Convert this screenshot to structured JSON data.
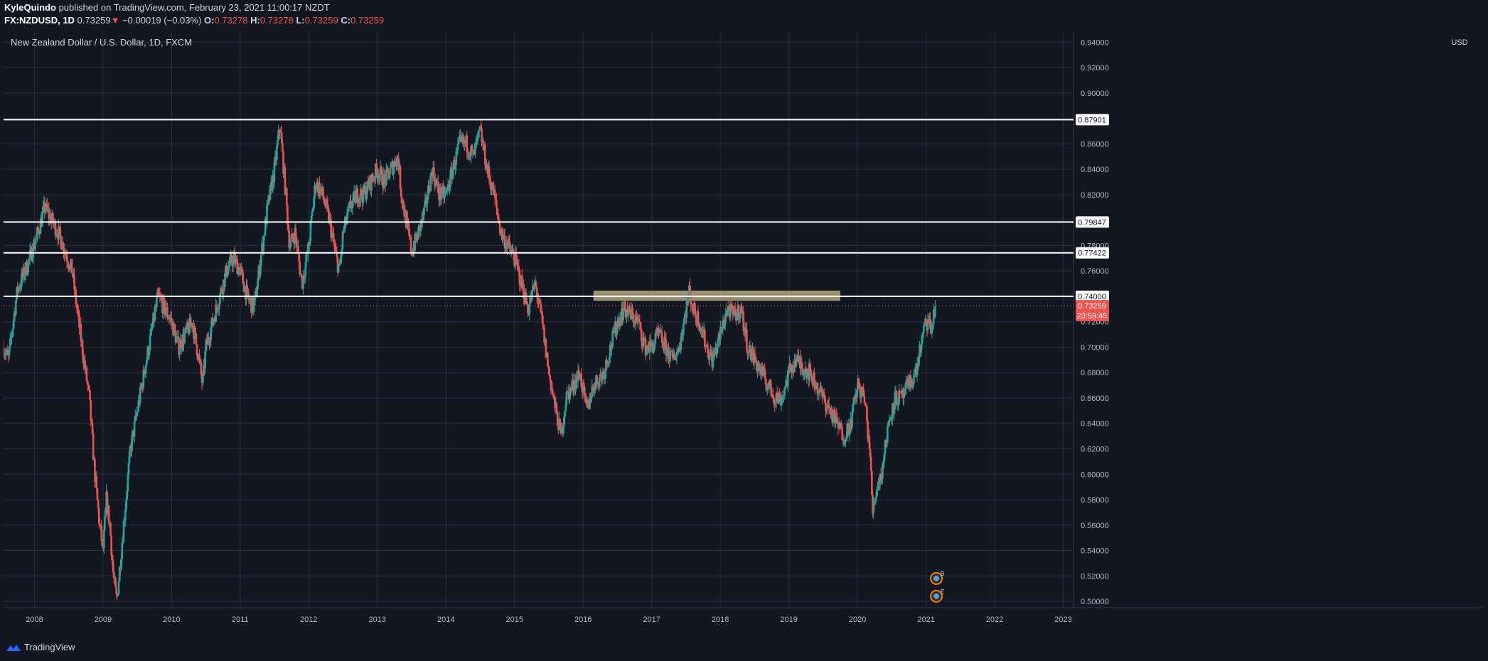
{
  "header": {
    "author": "KyleQuindo",
    "published_text": "published on TradingView.com, February 23, 2021 11:00:17 NZDT",
    "symbol": "FX:NZDUSD, 1D",
    "last": "0.73259",
    "change": "−0.00019 (−0.03%)",
    "o_label": "O:",
    "o": "0.73278",
    "h_label": "H:",
    "h": "0.73278",
    "l_label": "L:",
    "l": "0.73259",
    "c_label": "C:",
    "c": "0.73259"
  },
  "footer": {
    "brand": "TradingView"
  },
  "colors": {
    "background": "#131722",
    "grid": "#2a2e39",
    "up": "#26a69a",
    "down": "#ef5350",
    "level_line": "#ffffff",
    "zone": "#c8b88a",
    "price_badge": "#ef5350"
  },
  "chart_data": {
    "type": "candlestick",
    "title": "New Zealand Dollar / U.S. Dollar, 1D, FXCM",
    "currency": "USD",
    "x_range": [
      2007.55,
      2023.15
    ],
    "ylim": [
      0.495,
      0.948
    ],
    "x_ticks": [
      "2008",
      "2009",
      "2010",
      "2011",
      "2012",
      "2013",
      "2014",
      "2015",
      "2016",
      "2017",
      "2018",
      "2019",
      "2020",
      "2021",
      "2022",
      "2023"
    ],
    "y_ticks": [
      "0.94000",
      "0.92000",
      "0.90000",
      "0.88000",
      "0.86000",
      "0.84000",
      "0.82000",
      "0.80000",
      "0.78000",
      "0.76000",
      "0.74000",
      "0.72000",
      "0.70000",
      "0.68000",
      "0.66000",
      "0.64000",
      "0.62000",
      "0.60000",
      "0.58000",
      "0.56000",
      "0.54000",
      "0.52000",
      "0.50000"
    ],
    "price_path": [
      [
        2007.55,
        0.7
      ],
      [
        2007.62,
        0.69
      ],
      [
        2007.75,
        0.745
      ],
      [
        2007.9,
        0.765
      ],
      [
        2008.05,
        0.79
      ],
      [
        2008.15,
        0.81
      ],
      [
        2008.25,
        0.8
      ],
      [
        2008.35,
        0.79
      ],
      [
        2008.45,
        0.775
      ],
      [
        2008.55,
        0.76
      ],
      [
        2008.62,
        0.73
      ],
      [
        2008.72,
        0.69
      ],
      [
        2008.8,
        0.66
      ],
      [
        2008.88,
        0.6
      ],
      [
        2008.95,
        0.56
      ],
      [
        2009.0,
        0.54
      ],
      [
        2009.05,
        0.58
      ],
      [
        2009.1,
        0.56
      ],
      [
        2009.15,
        0.52
      ],
      [
        2009.2,
        0.5
      ],
      [
        2009.3,
        0.56
      ],
      [
        2009.4,
        0.62
      ],
      [
        2009.5,
        0.65
      ],
      [
        2009.6,
        0.68
      ],
      [
        2009.7,
        0.71
      ],
      [
        2009.8,
        0.74
      ],
      [
        2009.9,
        0.73
      ],
      [
        2010.0,
        0.72
      ],
      [
        2010.1,
        0.7
      ],
      [
        2010.2,
        0.71
      ],
      [
        2010.3,
        0.72
      ],
      [
        2010.4,
        0.69
      ],
      [
        2010.45,
        0.67
      ],
      [
        2010.5,
        0.7
      ],
      [
        2010.6,
        0.72
      ],
      [
        2010.7,
        0.74
      ],
      [
        2010.8,
        0.76
      ],
      [
        2010.9,
        0.77
      ],
      [
        2011.0,
        0.76
      ],
      [
        2011.1,
        0.74
      ],
      [
        2011.2,
        0.73
      ],
      [
        2011.3,
        0.77
      ],
      [
        2011.4,
        0.81
      ],
      [
        2011.5,
        0.84
      ],
      [
        2011.58,
        0.875
      ],
      [
        2011.65,
        0.83
      ],
      [
        2011.72,
        0.78
      ],
      [
        2011.8,
        0.79
      ],
      [
        2011.9,
        0.75
      ],
      [
        2012.0,
        0.78
      ],
      [
        2012.1,
        0.83
      ],
      [
        2012.2,
        0.82
      ],
      [
        2012.3,
        0.8
      ],
      [
        2012.4,
        0.77
      ],
      [
        2012.45,
        0.76
      ],
      [
        2012.5,
        0.79
      ],
      [
        2012.6,
        0.81
      ],
      [
        2012.7,
        0.82
      ],
      [
        2012.8,
        0.82
      ],
      [
        2012.9,
        0.83
      ],
      [
        2013.0,
        0.84
      ],
      [
        2013.1,
        0.83
      ],
      [
        2013.2,
        0.84
      ],
      [
        2013.3,
        0.85
      ],
      [
        2013.35,
        0.82
      ],
      [
        2013.45,
        0.79
      ],
      [
        2013.5,
        0.775
      ],
      [
        2013.6,
        0.79
      ],
      [
        2013.7,
        0.81
      ],
      [
        2013.8,
        0.84
      ],
      [
        2013.9,
        0.82
      ],
      [
        2014.0,
        0.82
      ],
      [
        2014.1,
        0.84
      ],
      [
        2014.2,
        0.86
      ],
      [
        2014.3,
        0.86
      ],
      [
        2014.4,
        0.85
      ],
      [
        2014.5,
        0.87
      ],
      [
        2014.6,
        0.84
      ],
      [
        2014.7,
        0.82
      ],
      [
        2014.8,
        0.79
      ],
      [
        2014.9,
        0.78
      ],
      [
        2015.0,
        0.77
      ],
      [
        2015.1,
        0.75
      ],
      [
        2015.2,
        0.73
      ],
      [
        2015.3,
        0.75
      ],
      [
        2015.4,
        0.72
      ],
      [
        2015.5,
        0.68
      ],
      [
        2015.6,
        0.65
      ],
      [
        2015.68,
        0.63
      ],
      [
        2015.75,
        0.66
      ],
      [
        2015.85,
        0.67
      ],
      [
        2015.95,
        0.68
      ],
      [
        2016.05,
        0.65
      ],
      [
        2016.15,
        0.67
      ],
      [
        2016.3,
        0.68
      ],
      [
        2016.4,
        0.7
      ],
      [
        2016.5,
        0.72
      ],
      [
        2016.6,
        0.73
      ],
      [
        2016.7,
        0.725
      ],
      [
        2016.8,
        0.72
      ],
      [
        2016.9,
        0.7
      ],
      [
        2017.0,
        0.7
      ],
      [
        2017.1,
        0.71
      ],
      [
        2017.2,
        0.7
      ],
      [
        2017.3,
        0.69
      ],
      [
        2017.4,
        0.7
      ],
      [
        2017.5,
        0.73
      ],
      [
        2017.55,
        0.745
      ],
      [
        2017.6,
        0.73
      ],
      [
        2017.7,
        0.72
      ],
      [
        2017.8,
        0.7
      ],
      [
        2017.88,
        0.69
      ],
      [
        2017.95,
        0.7
      ],
      [
        2018.0,
        0.71
      ],
      [
        2018.1,
        0.73
      ],
      [
        2018.2,
        0.725
      ],
      [
        2018.3,
        0.73
      ],
      [
        2018.4,
        0.7
      ],
      [
        2018.5,
        0.69
      ],
      [
        2018.6,
        0.68
      ],
      [
        2018.7,
        0.67
      ],
      [
        2018.8,
        0.66
      ],
      [
        2018.9,
        0.66
      ],
      [
        2019.0,
        0.68
      ],
      [
        2019.1,
        0.69
      ],
      [
        2019.2,
        0.685
      ],
      [
        2019.3,
        0.68
      ],
      [
        2019.4,
        0.67
      ],
      [
        2019.5,
        0.66
      ],
      [
        2019.6,
        0.65
      ],
      [
        2019.7,
        0.64
      ],
      [
        2019.8,
        0.63
      ],
      [
        2019.9,
        0.64
      ],
      [
        2020.0,
        0.67
      ],
      [
        2020.1,
        0.66
      ],
      [
        2020.18,
        0.62
      ],
      [
        2020.22,
        0.57
      ],
      [
        2020.28,
        0.59
      ],
      [
        2020.35,
        0.6
      ],
      [
        2020.45,
        0.64
      ],
      [
        2020.55,
        0.66
      ],
      [
        2020.65,
        0.66
      ],
      [
        2020.75,
        0.67
      ],
      [
        2020.85,
        0.68
      ],
      [
        2020.92,
        0.7
      ],
      [
        2021.0,
        0.72
      ],
      [
        2021.08,
        0.715
      ],
      [
        2021.14,
        0.733
      ]
    ],
    "horizontal_levels": [
      {
        "value": 0.87901,
        "label": "0.87901"
      },
      {
        "value": 0.79847,
        "label": "0.79847"
      },
      {
        "value": 0.77422,
        "label": "0.77422"
      },
      {
        "value": 0.74,
        "label": "0.74000"
      }
    ],
    "zone": {
      "x_start": 2016.15,
      "x_end": 2019.75,
      "y_low": 0.7365,
      "y_high": 0.7445
    },
    "last_price": {
      "value": 0.73259,
      "label": "0.73259",
      "countdown": "23:59:45"
    },
    "event_markers": [
      {
        "label": "B",
        "x": 2021.15,
        "y": 0.518
      },
      {
        "label": "E",
        "x": 2021.15,
        "y": 0.504
      }
    ]
  }
}
